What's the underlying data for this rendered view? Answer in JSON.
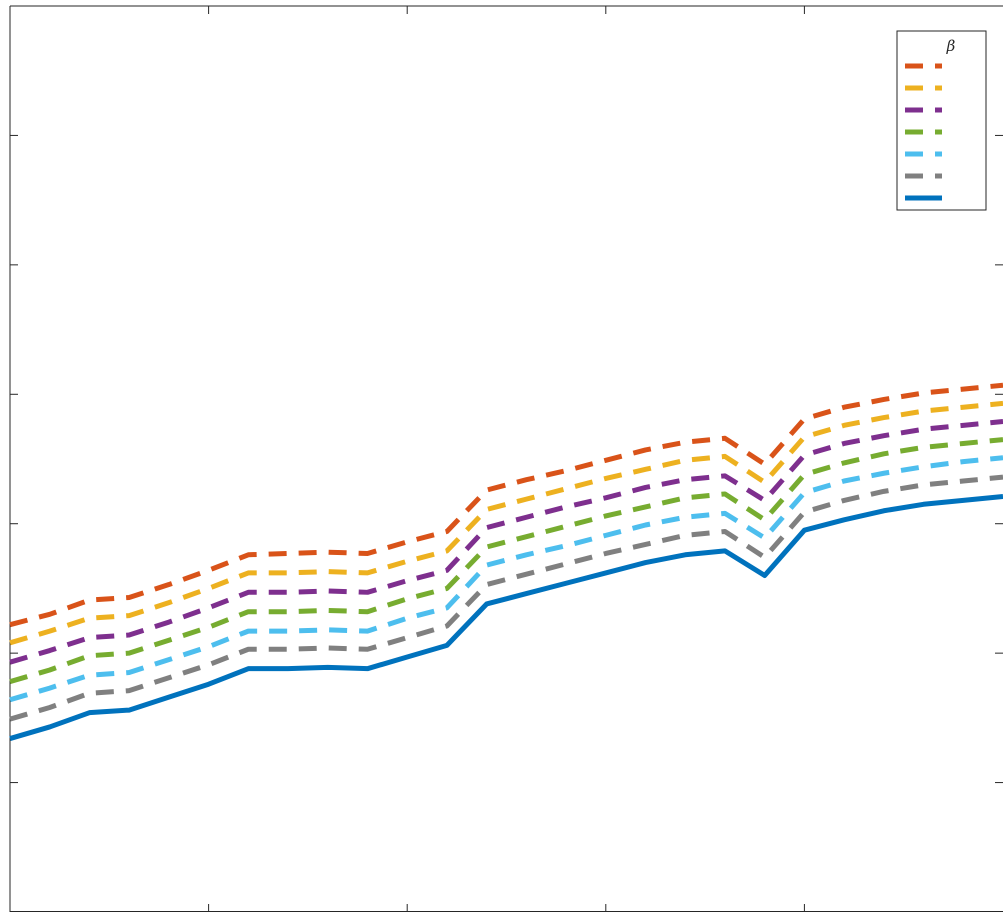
{
  "chart_data": {
    "type": "line",
    "title": "",
    "xlabel": "",
    "ylabel": "",
    "xlim": [
      0,
      25
    ],
    "ylim": [
      0,
      7
    ],
    "xticks": [
      0,
      5,
      10,
      15,
      20,
      25
    ],
    "yticks": [
      0,
      1,
      2,
      3,
      4,
      5,
      6,
      7
    ],
    "grid": false,
    "legend_title": "β",
    "legend_position": "top-right",
    "x": [
      0,
      1,
      2,
      3,
      4,
      5,
      6,
      7,
      8,
      9,
      10,
      11,
      12,
      13,
      14,
      15,
      16,
      17,
      18,
      19,
      20,
      21,
      22,
      23,
      24,
      25
    ],
    "series": [
      {
        "color": "#D95319",
        "style": "dashed",
        "values": [
          2.22,
          2.3,
          2.41,
          2.43,
          2.53,
          2.64,
          2.76,
          2.77,
          2.78,
          2.77,
          2.86,
          2.94,
          3.26,
          3.34,
          3.41,
          3.49,
          3.57,
          3.63,
          3.66,
          3.46,
          3.81,
          3.9,
          3.96,
          4.01,
          4.04,
          4.07
        ]
      },
      {
        "color": "#EDB120",
        "style": "dashed",
        "values": [
          2.08,
          2.17,
          2.27,
          2.29,
          2.39,
          2.5,
          2.62,
          2.62,
          2.63,
          2.62,
          2.71,
          2.79,
          3.11,
          3.19,
          3.27,
          3.35,
          3.42,
          3.49,
          3.52,
          3.32,
          3.67,
          3.76,
          3.82,
          3.87,
          3.9,
          3.93
        ]
      },
      {
        "color": "#7E2F8E",
        "style": "dashed",
        "values": [
          1.93,
          2.02,
          2.12,
          2.14,
          2.24,
          2.35,
          2.47,
          2.47,
          2.48,
          2.47,
          2.56,
          2.64,
          2.97,
          3.05,
          3.13,
          3.2,
          3.28,
          3.34,
          3.37,
          3.18,
          3.53,
          3.62,
          3.68,
          3.73,
          3.76,
          3.79
        ]
      },
      {
        "color": "#77AC30",
        "style": "dashed",
        "values": [
          1.78,
          1.87,
          1.98,
          2.0,
          2.1,
          2.2,
          2.32,
          2.32,
          2.33,
          2.32,
          2.42,
          2.5,
          2.82,
          2.9,
          2.98,
          3.06,
          3.13,
          3.2,
          3.23,
          3.03,
          3.38,
          3.47,
          3.54,
          3.59,
          3.62,
          3.65
        ]
      },
      {
        "color": "#4DBEEE",
        "style": "dashed",
        "values": [
          1.64,
          1.73,
          1.83,
          1.85,
          1.95,
          2.05,
          2.17,
          2.17,
          2.18,
          2.17,
          2.27,
          2.35,
          2.68,
          2.76,
          2.83,
          2.91,
          2.99,
          3.05,
          3.08,
          2.89,
          3.24,
          3.33,
          3.39,
          3.44,
          3.48,
          3.51
        ]
      },
      {
        "color": "#808080",
        "style": "dashed",
        "values": [
          1.49,
          1.58,
          1.69,
          1.71,
          1.81,
          1.91,
          2.03,
          2.03,
          2.04,
          2.03,
          2.12,
          2.21,
          2.53,
          2.61,
          2.69,
          2.77,
          2.84,
          2.91,
          2.94,
          2.74,
          3.09,
          3.18,
          3.25,
          3.3,
          3.33,
          3.36
        ]
      },
      {
        "color": "#0072BD",
        "style": "solid",
        "values": [
          1.34,
          1.43,
          1.54,
          1.56,
          1.66,
          1.76,
          1.88,
          1.88,
          1.89,
          1.88,
          1.97,
          2.06,
          2.38,
          2.46,
          2.54,
          2.62,
          2.7,
          2.76,
          2.79,
          2.6,
          2.95,
          3.03,
          3.1,
          3.15,
          3.18,
          3.21
        ]
      }
    ]
  }
}
